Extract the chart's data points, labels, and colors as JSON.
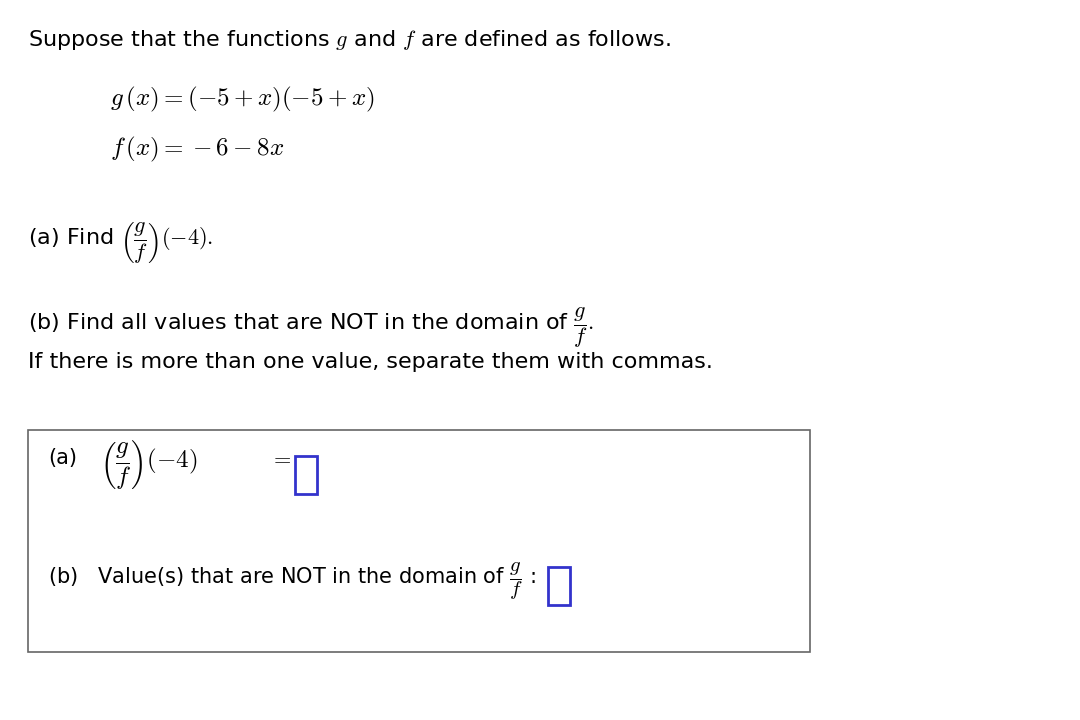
{
  "bg_color": "#ffffff",
  "text_color": "#000000",
  "box_color": "#3333cc",
  "figsize": [
    10.8,
    7.2
  ],
  "dpi": 100,
  "fs_main": 16,
  "fs_eq": 18
}
